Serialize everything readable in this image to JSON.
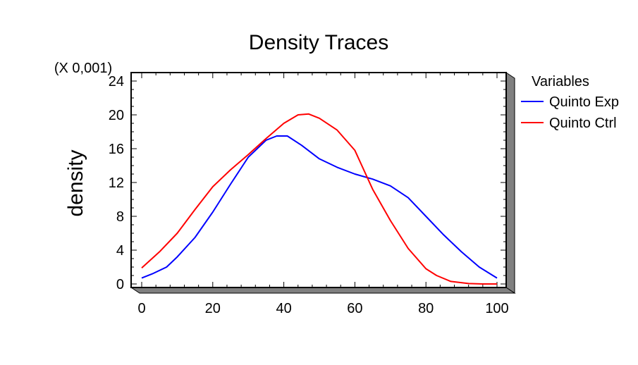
{
  "chart_data": {
    "type": "line",
    "title": "Density Traces",
    "xlabel": "",
    "ylabel": "density",
    "y_scale_note": "(X 0,001)",
    "xlim": [
      0,
      100
    ],
    "ylim": [
      0,
      24
    ],
    "x_ticks": [
      0,
      20,
      40,
      60,
      80,
      100
    ],
    "y_ticks": [
      0,
      4,
      8,
      12,
      16,
      20,
      24
    ],
    "grid": false,
    "legend": {
      "title": "Variables",
      "position": "right"
    },
    "series": [
      {
        "name": "Quinto Exp",
        "color": "#0000ff",
        "x": [
          0,
          3,
          7,
          10,
          15,
          20,
          25,
          30,
          35,
          38,
          41,
          45,
          50,
          55,
          60,
          65,
          70,
          75,
          80,
          85,
          90,
          95,
          100
        ],
        "y": [
          0.7,
          1.2,
          2.0,
          3.2,
          5.5,
          8.5,
          11.8,
          15.0,
          17.0,
          17.5,
          17.5,
          16.4,
          14.8,
          13.8,
          13.0,
          12.4,
          11.6,
          10.2,
          8.0,
          5.8,
          3.8,
          2.0,
          0.7
        ]
      },
      {
        "name": "Quinto Ctrl",
        "color": "#ff0000",
        "x": [
          0,
          5,
          10,
          15,
          20,
          25,
          30,
          35,
          40,
          44,
          47,
          50,
          55,
          60,
          65,
          70,
          75,
          80,
          83,
          87,
          92,
          96,
          100
        ],
        "y": [
          1.9,
          3.8,
          6.0,
          8.8,
          11.5,
          13.5,
          15.3,
          17.2,
          19.0,
          20.0,
          20.1,
          19.6,
          18.2,
          15.8,
          11.2,
          7.5,
          4.2,
          1.8,
          1.0,
          0.3,
          0.05,
          0.0,
          0.0
        ]
      }
    ]
  }
}
